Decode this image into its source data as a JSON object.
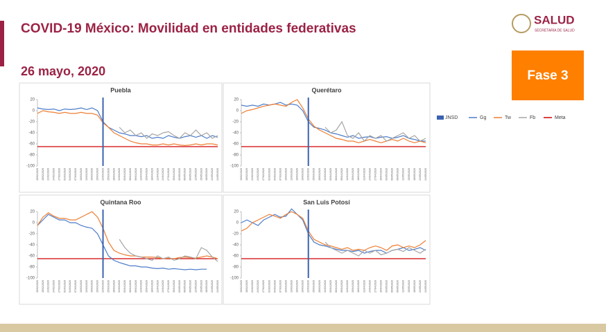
{
  "header": {
    "title": "COVID-19 México: Movilidad en entidades federativas",
    "date": "26 mayo, 2020",
    "badge": "Fase 3"
  },
  "logo": {
    "name": "SALUD",
    "sub": "SECRETARÍA DE SALUD"
  },
  "chart_data": [
    {
      "type": "line",
      "title": "Puebla",
      "categories": [
        "15/02/2020",
        "18/02/2020",
        "21/02/2020",
        "24/02/2020",
        "27/02/2020",
        "01/03/2020",
        "04/03/2020",
        "07/03/2020",
        "10/03/2020",
        "13/03/2020",
        "16/03/2020",
        "19/03/2020",
        "22/03/2020",
        "25/03/2020",
        "28/03/2020",
        "31/03/2020",
        "03/04/2020",
        "06/04/2020",
        "09/04/2020",
        "12/04/2020",
        "15/04/2020",
        "18/04/2020",
        "21/04/2020",
        "24/04/2020",
        "27/04/2020",
        "30/04/2020",
        "03/05/2020",
        "06/05/2020",
        "09/05/2020",
        "12/05/2020",
        "15/05/2020",
        "18/05/2020",
        "21/05/2020",
        "24/05/2020"
      ],
      "ylim": [
        -100,
        20
      ],
      "yticks": [
        20,
        0,
        -20,
        -40,
        -60,
        -80,
        -100
      ],
      "markers": {
        "jnsd": {
          "name": "JNSD",
          "color": "#3a62b0",
          "x": "22/03/2020"
        },
        "meta": {
          "name": "Meta",
          "color": "#d00000",
          "value": -65
        }
      },
      "series": [
        {
          "name": "Gg",
          "color": "#4a7bc8",
          "values": [
            5,
            3,
            2,
            3,
            0,
            3,
            2,
            3,
            5,
            2,
            5,
            0,
            -20,
            -30,
            -35,
            -40,
            -42,
            -45,
            -45,
            -47,
            -45,
            -50,
            -48,
            -50,
            -45,
            -48,
            -50,
            -47,
            -45,
            -48,
            -45,
            -50,
            -45,
            -48
          ]
        },
        {
          "name": "Tw",
          "color": "#ed7d31",
          "values": [
            -5,
            0,
            -2,
            -3,
            -5,
            -3,
            -5,
            -5,
            -3,
            -5,
            -5,
            -8,
            -22,
            -30,
            -40,
            -45,
            -50,
            -55,
            -58,
            -60,
            -60,
            -62,
            -62,
            -60,
            -62,
            -60,
            -62,
            -63,
            -62,
            -60,
            -62,
            -60,
            -60,
            -62
          ]
        },
        {
          "name": "Fb",
          "color": "#a5a5a5",
          "values": [
            null,
            null,
            null,
            null,
            null,
            null,
            null,
            null,
            null,
            null,
            null,
            null,
            null,
            null,
            null,
            -30,
            -40,
            -35,
            -45,
            -40,
            -50,
            -42,
            -45,
            -40,
            -38,
            -45,
            -50,
            -40,
            -45,
            -35,
            -45,
            -40,
            -50,
            -45
          ]
        }
      ]
    },
    {
      "type": "line",
      "title": "Querétaro",
      "categories": [
        "15/02/2020",
        "18/02/2020",
        "21/02/2020",
        "24/02/2020",
        "27/02/2020",
        "01/03/2020",
        "04/03/2020",
        "07/03/2020",
        "10/03/2020",
        "13/03/2020",
        "16/03/2020",
        "19/03/2020",
        "22/03/2020",
        "25/03/2020",
        "28/03/2020",
        "31/03/2020",
        "03/04/2020",
        "06/04/2020",
        "09/04/2020",
        "12/04/2020",
        "15/04/2020",
        "18/04/2020",
        "21/04/2020",
        "24/04/2020",
        "27/04/2020",
        "30/04/2020",
        "03/05/2020",
        "06/05/2020",
        "09/05/2020",
        "12/05/2020",
        "15/05/2020",
        "18/05/2020",
        "21/05/2020",
        "24/05/2020"
      ],
      "ylim": [
        -100,
        20
      ],
      "yticks": [
        20,
        0,
        -20,
        -40,
        -60,
        -80,
        -100
      ],
      "markers": {
        "jnsd": {
          "name": "JNSD",
          "color": "#3a62b0",
          "x": "22/03/2020"
        },
        "meta": {
          "name": "Meta",
          "color": "#d00000",
          "value": -65
        }
      },
      "series": [
        {
          "name": "Gg",
          "color": "#4a7bc8",
          "values": [
            10,
            8,
            10,
            8,
            12,
            10,
            12,
            15,
            10,
            12,
            10,
            0,
            -20,
            -30,
            -32,
            -35,
            -40,
            -42,
            -45,
            -48,
            -45,
            -50,
            -48,
            -47,
            -50,
            -48,
            -47,
            -50,
            -48,
            -45,
            -50,
            -52,
            -55,
            -55
          ]
        },
        {
          "name": "Tw",
          "color": "#ed7d31",
          "values": [
            -5,
            0,
            2,
            5,
            8,
            10,
            12,
            10,
            8,
            15,
            20,
            5,
            -15,
            -28,
            -35,
            -40,
            -45,
            -50,
            -52,
            -55,
            -55,
            -58,
            -55,
            -52,
            -55,
            -58,
            -55,
            -52,
            -55,
            -50,
            -55,
            -58,
            -55,
            -58
          ]
        },
        {
          "name": "Fb",
          "color": "#a5a5a5",
          "values": [
            null,
            null,
            null,
            null,
            null,
            null,
            null,
            null,
            null,
            null,
            null,
            null,
            null,
            null,
            null,
            -30,
            -40,
            -35,
            -20,
            -45,
            -50,
            -40,
            -55,
            -45,
            -50,
            -45,
            -55,
            -50,
            -45,
            -40,
            -50,
            -45,
            -55,
            -50
          ]
        }
      ]
    },
    {
      "type": "line",
      "title": "Quintana Roo",
      "categories": [
        "15/02/2020",
        "18/02/2020",
        "21/02/2020",
        "24/02/2020",
        "27/02/2020",
        "01/03/2020",
        "04/03/2020",
        "07/03/2020",
        "10/03/2020",
        "13/03/2020",
        "16/03/2020",
        "19/03/2020",
        "22/03/2020",
        "25/03/2020",
        "28/03/2020",
        "31/03/2020",
        "03/04/2020",
        "06/04/2020",
        "09/04/2020",
        "12/04/2020",
        "15/04/2020",
        "18/04/2020",
        "21/04/2020",
        "24/04/2020",
        "27/04/2020",
        "30/04/2020",
        "03/05/2020",
        "06/05/2020",
        "09/05/2020",
        "12/05/2020",
        "15/05/2020",
        "18/05/2020",
        "21/05/2020",
        "24/05/2020"
      ],
      "ylim": [
        -100,
        20
      ],
      "yticks": [
        20,
        0,
        -20,
        -40,
        -60,
        -80,
        -100
      ],
      "markers": {
        "jnsd": {
          "name": "JNSD",
          "color": "#3a62b0",
          "x": "22/03/2020"
        },
        "meta": {
          "name": "Meta",
          "color": "#d00000",
          "value": -65
        }
      },
      "series": [
        {
          "name": "Gg",
          "color": "#4a7bc8",
          "values": [
            -5,
            5,
            15,
            10,
            5,
            5,
            0,
            0,
            -5,
            -8,
            -10,
            -20,
            -40,
            -60,
            -68,
            -72,
            -75,
            -78,
            -78,
            -80,
            -80,
            -82,
            -83,
            -82,
            -84,
            -83,
            -84,
            -85,
            -84,
            -85,
            -84,
            -84,
            null,
            null
          ]
        },
        {
          "name": "Tw",
          "color": "#ed7d31",
          "values": [
            -5,
            10,
            18,
            12,
            8,
            8,
            5,
            5,
            10,
            15,
            20,
            10,
            -10,
            -35,
            -50,
            -55,
            -58,
            -60,
            -60,
            -62,
            -62,
            -62,
            -63,
            -65,
            -64,
            -65,
            -63,
            -62,
            -63,
            -64,
            -62,
            -60,
            -62,
            -65
          ]
        },
        {
          "name": "Fb",
          "color": "#a5a5a5",
          "values": [
            null,
            null,
            null,
            null,
            null,
            null,
            null,
            null,
            null,
            null,
            null,
            null,
            null,
            null,
            null,
            -30,
            -45,
            -55,
            -60,
            -62,
            -65,
            -68,
            -60,
            -65,
            -62,
            -68,
            -65,
            -60,
            -62,
            -65,
            -45,
            -50,
            -62,
            -70
          ]
        }
      ]
    },
    {
      "type": "line",
      "title": "San Luis Potosí",
      "categories": [
        "15/02/2020",
        "18/02/2020",
        "21/02/2020",
        "24/02/2020",
        "27/02/2020",
        "01/03/2020",
        "04/03/2020",
        "07/03/2020",
        "10/03/2020",
        "13/03/2020",
        "16/03/2020",
        "19/03/2020",
        "22/03/2020",
        "25/03/2020",
        "28/03/2020",
        "31/03/2020",
        "03/04/2020",
        "06/04/2020",
        "09/04/2020",
        "12/04/2020",
        "15/04/2020",
        "18/04/2020",
        "21/04/2020",
        "24/04/2020",
        "27/04/2020",
        "30/04/2020",
        "03/05/2020",
        "06/05/2020",
        "09/05/2020",
        "12/05/2020",
        "15/05/2020",
        "18/05/2020",
        "21/05/2020",
        "24/05/2020"
      ],
      "ylim": [
        -100,
        20
      ],
      "yticks": [
        20,
        0,
        -20,
        -40,
        -60,
        -80,
        -100
      ],
      "markers": {
        "jnsd": {
          "name": "JNSD",
          "color": "#3a62b0",
          "x": "22/03/2020"
        },
        "meta": {
          "name": "Meta",
          "color": "#d00000",
          "value": -65
        }
      },
      "series": [
        {
          "name": "Gg",
          "color": "#4a7bc8",
          "values": [
            0,
            5,
            0,
            -5,
            5,
            10,
            15,
            10,
            12,
            25,
            15,
            5,
            -20,
            -35,
            -40,
            -42,
            -45,
            -48,
            -50,
            -50,
            -52,
            -50,
            -55,
            -52,
            -50,
            -50,
            -55,
            -50,
            -48,
            -45,
            -50,
            -48,
            -45,
            -50
          ]
        },
        {
          "name": "Tw",
          "color": "#ed7d31",
          "values": [
            -15,
            -10,
            0,
            5,
            10,
            15,
            12,
            8,
            15,
            20,
            15,
            8,
            -15,
            -30,
            -35,
            -40,
            -42,
            -45,
            -48,
            -45,
            -50,
            -48,
            -50,
            -45,
            -42,
            -45,
            -50,
            -42,
            -40,
            -45,
            -42,
            -45,
            -40,
            -32
          ]
        },
        {
          "name": "Fb",
          "color": "#a5a5a5",
          "values": [
            null,
            null,
            null,
            null,
            null,
            null,
            null,
            null,
            null,
            null,
            null,
            null,
            null,
            null,
            null,
            -35,
            -45,
            -50,
            -55,
            -50,
            -55,
            -60,
            -50,
            -55,
            -50,
            -58,
            -55,
            -50,
            -48,
            -52,
            -45,
            -50,
            -55,
            -48
          ]
        }
      ]
    }
  ]
}
